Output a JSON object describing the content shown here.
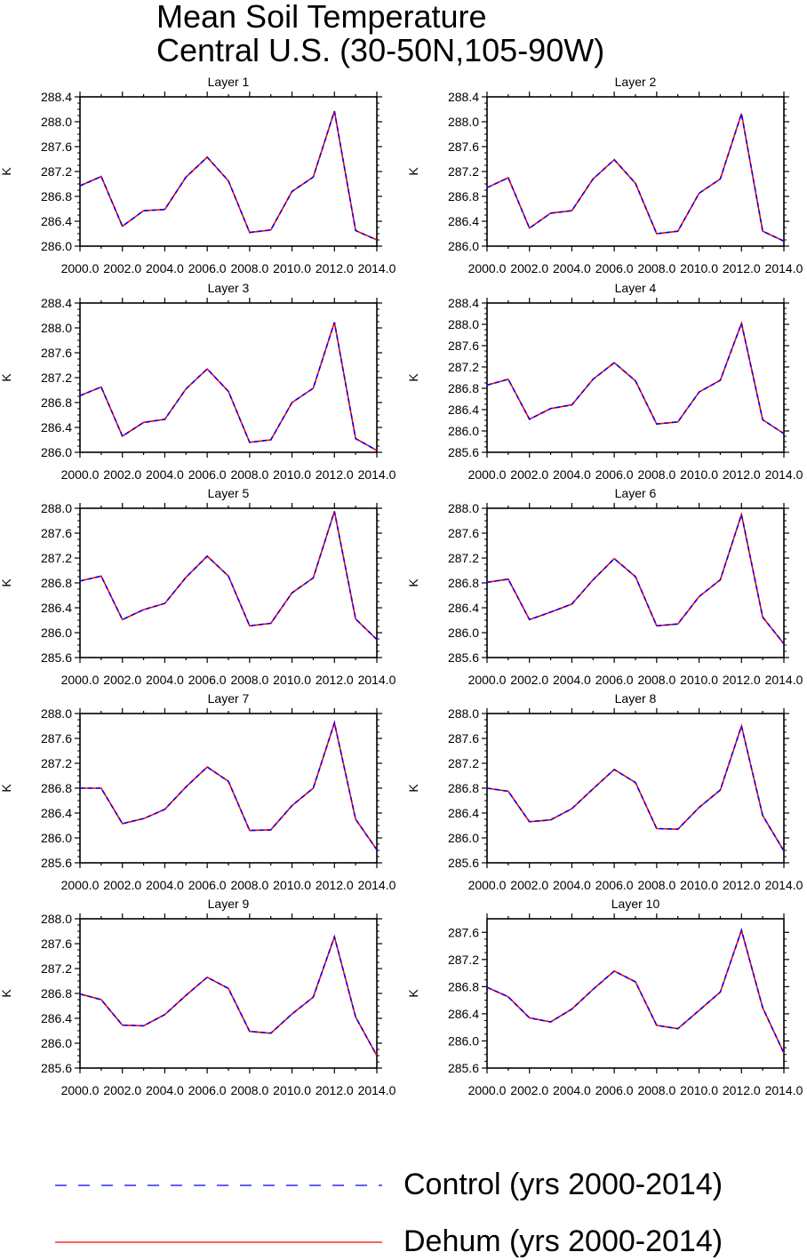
{
  "title": [
    "Mean Soil Temperature",
    "Central U.S. (30-50N,105-90W)"
  ],
  "colors": {
    "control": "#0000ff",
    "dehum": "#ff0000"
  },
  "legend": {
    "control_label": "Control (yrs 2000-2014)",
    "dehum_label": "Dehum (yrs 2000-2014)"
  },
  "chart_data": [
    {
      "type": "line",
      "title": "Layer 1",
      "ylabel": "K",
      "x": [
        2000,
        2001,
        2002,
        2003,
        2004,
        2005,
        2006,
        2007,
        2008,
        2009,
        2010,
        2011,
        2012,
        2013,
        2014
      ],
      "xticks": [
        "2000.0",
        "2002.0",
        "2004.0",
        "2006.0",
        "2008.0",
        "2010.0",
        "2012.0",
        "2014.0"
      ],
      "xlim": [
        2000,
        2014
      ],
      "ylim": [
        286.0,
        288.4
      ],
      "yticks": [
        "286.0",
        "286.4",
        "286.8",
        "287.2",
        "287.6",
        "288.0",
        "288.4"
      ],
      "series": [
        {
          "name": "Control (yrs 2000-2014)",
          "values": [
            286.97,
            287.12,
            286.32,
            286.57,
            286.59,
            287.11,
            287.43,
            287.05,
            286.22,
            286.26,
            286.88,
            287.11,
            288.17,
            286.25,
            286.1
          ]
        },
        {
          "name": "Dehum (yrs 2000-2014)",
          "values": [
            286.97,
            287.12,
            286.32,
            286.57,
            286.59,
            287.11,
            287.43,
            287.05,
            286.22,
            286.26,
            286.88,
            287.11,
            288.17,
            286.25,
            286.1
          ]
        }
      ]
    },
    {
      "type": "line",
      "title": "Layer 2",
      "ylabel": "K",
      "x": [
        2000,
        2001,
        2002,
        2003,
        2004,
        2005,
        2006,
        2007,
        2008,
        2009,
        2010,
        2011,
        2012,
        2013,
        2014
      ],
      "xticks": [
        "2000.0",
        "2002.0",
        "2004.0",
        "2006.0",
        "2008.0",
        "2010.0",
        "2012.0",
        "2014.0"
      ],
      "xlim": [
        2000,
        2014
      ],
      "ylim": [
        286.0,
        288.4
      ],
      "yticks": [
        "286.0",
        "286.4",
        "286.8",
        "287.2",
        "287.6",
        "288.0",
        "288.4"
      ],
      "series": [
        {
          "name": "Control (yrs 2000-2014)",
          "values": [
            286.94,
            287.1,
            286.29,
            286.53,
            286.57,
            287.08,
            287.39,
            287.01,
            286.2,
            286.24,
            286.85,
            287.08,
            288.13,
            286.24,
            286.08
          ]
        },
        {
          "name": "Dehum (yrs 2000-2014)",
          "values": [
            286.94,
            287.1,
            286.29,
            286.53,
            286.57,
            287.08,
            287.39,
            287.01,
            286.2,
            286.24,
            286.85,
            287.08,
            288.13,
            286.24,
            286.08
          ]
        }
      ]
    },
    {
      "type": "line",
      "title": "Layer 3",
      "ylabel": "K",
      "x": [
        2000,
        2001,
        2002,
        2003,
        2004,
        2005,
        2006,
        2007,
        2008,
        2009,
        2010,
        2011,
        2012,
        2013,
        2014
      ],
      "xticks": [
        "2000.0",
        "2002.0",
        "2004.0",
        "2006.0",
        "2008.0",
        "2010.0",
        "2012.0",
        "2014.0"
      ],
      "xlim": [
        2000,
        2014
      ],
      "ylim": [
        286.0,
        288.4
      ],
      "yticks": [
        "286.0",
        "286.4",
        "286.8",
        "287.2",
        "287.6",
        "288.0",
        "288.4"
      ],
      "series": [
        {
          "name": "Control (yrs 2000-2014)",
          "values": [
            286.91,
            287.05,
            286.26,
            286.48,
            286.53,
            287.02,
            287.34,
            286.98,
            286.16,
            286.2,
            286.8,
            287.03,
            288.09,
            286.22,
            286.03
          ]
        },
        {
          "name": "Dehum (yrs 2000-2014)",
          "values": [
            286.91,
            287.05,
            286.26,
            286.48,
            286.53,
            287.02,
            287.34,
            286.98,
            286.16,
            286.2,
            286.8,
            287.03,
            288.09,
            286.22,
            286.03
          ]
        }
      ]
    },
    {
      "type": "line",
      "title": "Layer 4",
      "ylabel": "K",
      "x": [
        2000,
        2001,
        2002,
        2003,
        2004,
        2005,
        2006,
        2007,
        2008,
        2009,
        2010,
        2011,
        2012,
        2013,
        2014
      ],
      "xticks": [
        "2000.0",
        "2002.0",
        "2004.0",
        "2006.0",
        "2008.0",
        "2010.0",
        "2012.0",
        "2014.0"
      ],
      "xlim": [
        2000,
        2014
      ],
      "ylim": [
        285.6,
        288.4
      ],
      "yticks": [
        "285.6",
        "286.0",
        "286.4",
        "286.8",
        "287.2",
        "287.6",
        "288.0",
        "288.4"
      ],
      "series": [
        {
          "name": "Control (yrs 2000-2014)",
          "values": [
            286.86,
            286.97,
            286.22,
            286.42,
            286.49,
            286.97,
            287.28,
            286.94,
            286.13,
            286.17,
            286.73,
            286.95,
            288.02,
            286.21,
            285.95
          ]
        },
        {
          "name": "Dehum (yrs 2000-2014)",
          "values": [
            286.86,
            286.97,
            286.22,
            286.42,
            286.49,
            286.97,
            287.28,
            286.94,
            286.13,
            286.17,
            286.73,
            286.95,
            288.02,
            286.21,
            285.95
          ]
        }
      ]
    },
    {
      "type": "line",
      "title": "Layer 5",
      "ylabel": "K",
      "x": [
        2000,
        2001,
        2002,
        2003,
        2004,
        2005,
        2006,
        2007,
        2008,
        2009,
        2010,
        2011,
        2012,
        2013,
        2014
      ],
      "xticks": [
        "2000.0",
        "2002.0",
        "2004.0",
        "2006.0",
        "2008.0",
        "2010.0",
        "2012.0",
        "2014.0"
      ],
      "xlim": [
        2000,
        2014
      ],
      "ylim": [
        285.6,
        288.0
      ],
      "yticks": [
        "285.6",
        "286.0",
        "286.4",
        "286.8",
        "287.2",
        "287.6",
        "288.0"
      ],
      "series": [
        {
          "name": "Control (yrs 2000-2014)",
          "values": [
            286.83,
            286.91,
            286.21,
            286.37,
            286.47,
            286.89,
            287.23,
            286.91,
            286.11,
            286.15,
            286.64,
            286.88,
            287.95,
            286.22,
            285.89
          ]
        },
        {
          "name": "Dehum (yrs 2000-2014)",
          "values": [
            286.83,
            286.91,
            286.21,
            286.37,
            286.47,
            286.89,
            287.23,
            286.91,
            286.11,
            286.15,
            286.64,
            286.88,
            287.95,
            286.22,
            285.89
          ]
        }
      ]
    },
    {
      "type": "line",
      "title": "Layer 6",
      "ylabel": "K",
      "x": [
        2000,
        2001,
        2002,
        2003,
        2004,
        2005,
        2006,
        2007,
        2008,
        2009,
        2010,
        2011,
        2012,
        2013,
        2014
      ],
      "xticks": [
        "2000.0",
        "2002.0",
        "2004.0",
        "2006.0",
        "2008.0",
        "2010.0",
        "2012.0",
        "2014.0"
      ],
      "xlim": [
        2000,
        2014
      ],
      "ylim": [
        285.6,
        288.0
      ],
      "yticks": [
        "285.6",
        "286.0",
        "286.4",
        "286.8",
        "287.2",
        "287.6",
        "288.0"
      ],
      "series": [
        {
          "name": "Control (yrs 2000-2014)",
          "values": [
            286.81,
            286.86,
            286.21,
            286.33,
            286.46,
            286.85,
            287.19,
            286.9,
            286.11,
            286.14,
            286.58,
            286.85,
            287.9,
            286.25,
            285.82
          ]
        },
        {
          "name": "Dehum (yrs 2000-2014)",
          "values": [
            286.81,
            286.86,
            286.21,
            286.33,
            286.46,
            286.85,
            287.19,
            286.9,
            286.11,
            286.14,
            286.58,
            286.85,
            287.9,
            286.25,
            285.82
          ]
        }
      ]
    },
    {
      "type": "line",
      "title": "Layer 7",
      "ylabel": "K",
      "x": [
        2000,
        2001,
        2002,
        2003,
        2004,
        2005,
        2006,
        2007,
        2008,
        2009,
        2010,
        2011,
        2012,
        2013,
        2014
      ],
      "xticks": [
        "2000.0",
        "2002.0",
        "2004.0",
        "2006.0",
        "2008.0",
        "2010.0",
        "2012.0",
        "2014.0"
      ],
      "xlim": [
        2000,
        2014
      ],
      "ylim": [
        285.6,
        288.0
      ],
      "yticks": [
        "285.6",
        "286.0",
        "286.4",
        "286.8",
        "287.2",
        "287.6",
        "288.0"
      ],
      "series": [
        {
          "name": "Control (yrs 2000-2014)",
          "values": [
            286.8,
            286.8,
            286.23,
            286.31,
            286.46,
            286.82,
            287.14,
            286.91,
            286.12,
            286.13,
            286.52,
            286.8,
            287.85,
            286.3,
            285.81
          ]
        },
        {
          "name": "Dehum (yrs 2000-2014)",
          "values": [
            286.8,
            286.8,
            286.23,
            286.31,
            286.46,
            286.82,
            287.14,
            286.91,
            286.12,
            286.13,
            286.52,
            286.8,
            287.85,
            286.3,
            285.81
          ]
        }
      ]
    },
    {
      "type": "line",
      "title": "Layer 8",
      "ylabel": "K",
      "x": [
        2000,
        2001,
        2002,
        2003,
        2004,
        2005,
        2006,
        2007,
        2008,
        2009,
        2010,
        2011,
        2012,
        2013,
        2014
      ],
      "xticks": [
        "2000.0",
        "2002.0",
        "2004.0",
        "2006.0",
        "2008.0",
        "2010.0",
        "2012.0",
        "2014.0"
      ],
      "xlim": [
        2000,
        2014
      ],
      "ylim": [
        285.6,
        288.0
      ],
      "yticks": [
        "285.6",
        "286.0",
        "286.4",
        "286.8",
        "287.2",
        "287.6",
        "288.0"
      ],
      "series": [
        {
          "name": "Control (yrs 2000-2014)",
          "values": [
            286.8,
            286.75,
            286.26,
            286.29,
            286.47,
            286.79,
            287.1,
            286.89,
            286.15,
            286.14,
            286.49,
            286.77,
            287.8,
            286.36,
            285.79
          ]
        },
        {
          "name": "Dehum (yrs 2000-2014)",
          "values": [
            286.8,
            286.75,
            286.26,
            286.29,
            286.47,
            286.79,
            287.1,
            286.89,
            286.15,
            286.14,
            286.49,
            286.77,
            287.8,
            286.36,
            285.79
          ]
        }
      ]
    },
    {
      "type": "line",
      "title": "Layer 9",
      "ylabel": "K",
      "x": [
        2000,
        2001,
        2002,
        2003,
        2004,
        2005,
        2006,
        2007,
        2008,
        2009,
        2010,
        2011,
        2012,
        2013,
        2014
      ],
      "xticks": [
        "2000.0",
        "2002.0",
        "2004.0",
        "2006.0",
        "2008.0",
        "2010.0",
        "2012.0",
        "2014.0"
      ],
      "xlim": [
        2000,
        2014
      ],
      "ylim": [
        285.6,
        288.0
      ],
      "yticks": [
        "285.6",
        "286.0",
        "286.4",
        "286.8",
        "287.2",
        "287.6",
        "288.0"
      ],
      "series": [
        {
          "name": "Control (yrs 2000-2014)",
          "values": [
            286.79,
            286.7,
            286.29,
            286.28,
            286.46,
            286.77,
            287.06,
            286.88,
            286.19,
            286.16,
            286.47,
            286.74,
            287.71,
            286.42,
            285.8
          ]
        },
        {
          "name": "Dehum (yrs 2000-2014)",
          "values": [
            286.79,
            286.7,
            286.29,
            286.28,
            286.46,
            286.77,
            287.06,
            286.88,
            286.19,
            286.16,
            286.47,
            286.74,
            287.71,
            286.42,
            285.8
          ]
        }
      ]
    },
    {
      "type": "line",
      "title": "Layer 10",
      "ylabel": "K",
      "x": [
        2000,
        2001,
        2002,
        2003,
        2004,
        2005,
        2006,
        2007,
        2008,
        2009,
        2010,
        2011,
        2012,
        2013,
        2014
      ],
      "xticks": [
        "2000.0",
        "2002.0",
        "2004.0",
        "2006.0",
        "2008.0",
        "2010.0",
        "2012.0",
        "2014.0"
      ],
      "xlim": [
        2000,
        2014
      ],
      "ylim": [
        285.6,
        287.8
      ],
      "yticks": [
        "285.6",
        "286.0",
        "286.4",
        "286.8",
        "287.2",
        "287.6"
      ],
      "series": [
        {
          "name": "Control (yrs 2000-2014)",
          "values": [
            286.79,
            286.65,
            286.34,
            286.28,
            286.47,
            286.76,
            287.03,
            286.87,
            286.23,
            286.18,
            286.45,
            286.72,
            287.63,
            286.49,
            285.82
          ]
        },
        {
          "name": "Dehum (yrs 2000-2014)",
          "values": [
            286.79,
            286.65,
            286.34,
            286.28,
            286.47,
            286.76,
            287.03,
            286.87,
            286.23,
            286.18,
            286.45,
            286.72,
            287.63,
            286.49,
            285.82
          ]
        }
      ]
    }
  ]
}
